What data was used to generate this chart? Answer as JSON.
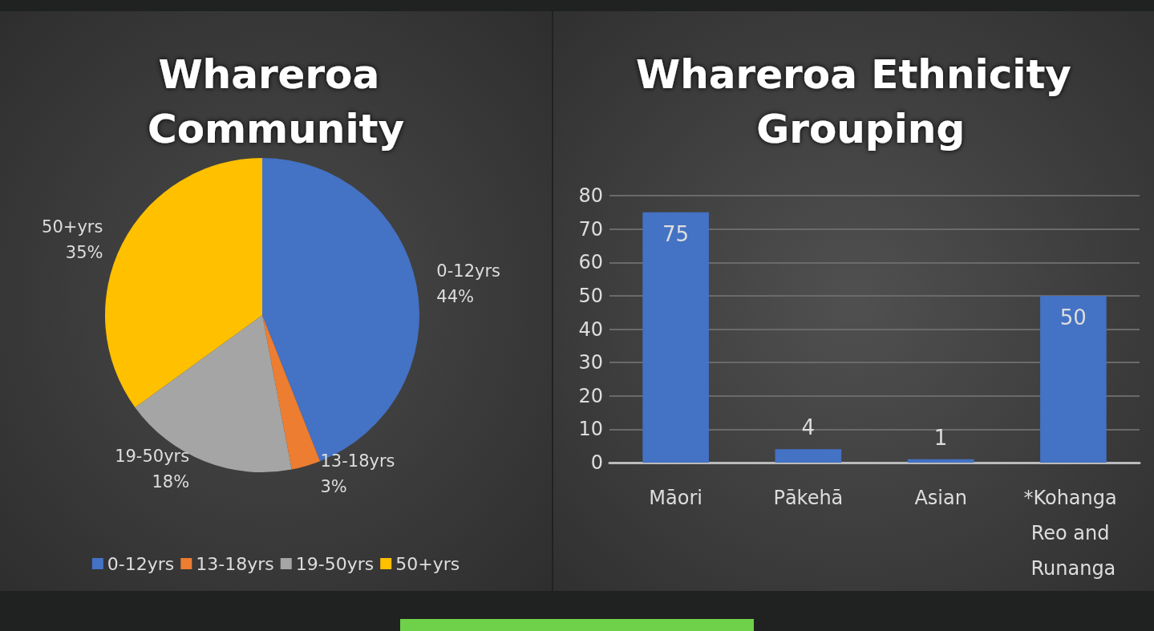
{
  "chart_data": [
    {
      "type": "pie",
      "title": "Whareroa Community",
      "categories": [
        "0-12yrs",
        "13-18yrs",
        "19-50yrs",
        "50+yrs"
      ],
      "values": [
        44,
        3,
        18,
        35
      ],
      "colors": [
        "#4472c4",
        "#ed7d31",
        "#a5a5a5",
        "#ffc000"
      ],
      "value_labels": [
        "44%",
        "3%",
        "18%",
        "35%"
      ],
      "legend": "bottom"
    },
    {
      "type": "bar",
      "title": "Whareroa Ethnicity Grouping",
      "categories": [
        "Māori",
        "Pākehā",
        "Asian",
        "*Kohanga Reo and Runanga"
      ],
      "values": [
        75,
        4,
        1,
        50
      ],
      "color": "#4472c4",
      "ylim": [
        0,
        80
      ],
      "yticks": [
        0,
        10,
        20,
        30,
        40,
        50,
        60,
        70,
        80
      ],
      "grid": "y",
      "data_labels": true
    }
  ]
}
